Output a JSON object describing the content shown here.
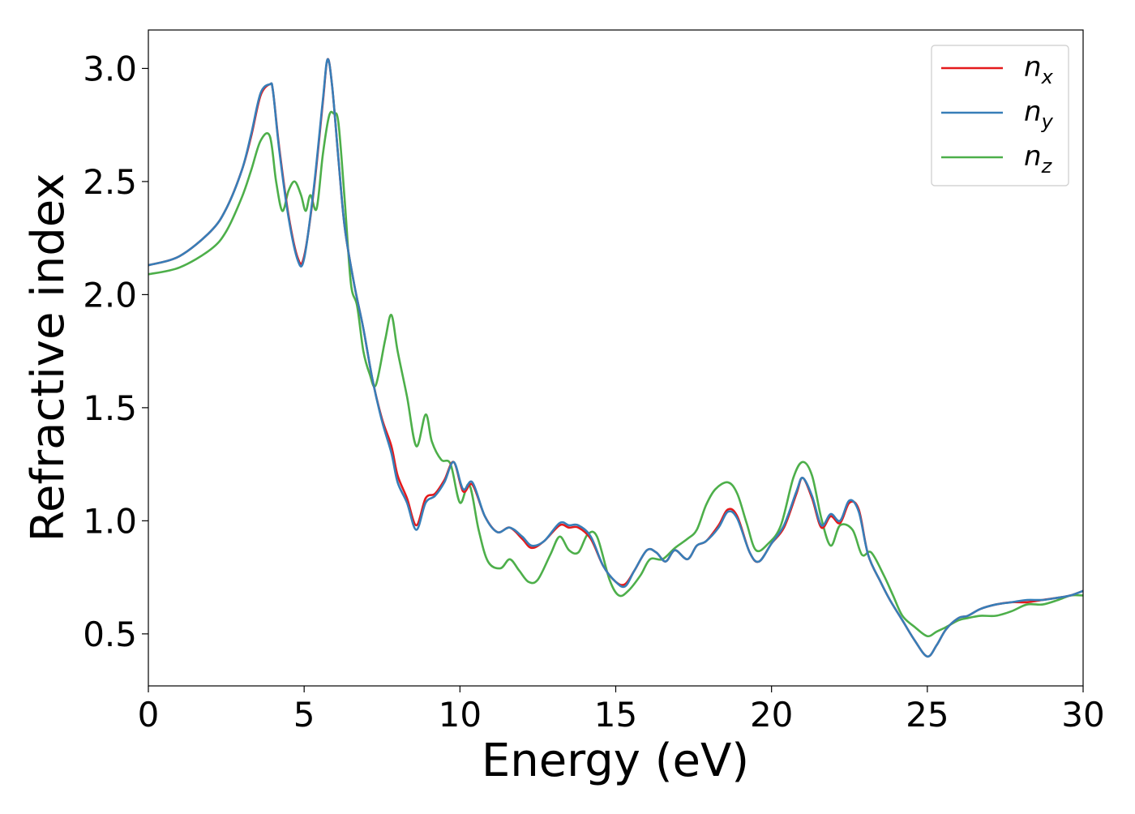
{
  "chart_data": {
    "type": "line",
    "title": "",
    "xlabel": "Energy (eV)",
    "ylabel": "Refractive index",
    "xlim": [
      0,
      30
    ],
    "ylim": [
      0.27,
      3.17
    ],
    "xticks": [
      0,
      5,
      10,
      15,
      20,
      25,
      30
    ],
    "xtick_labels": [
      "0",
      "5",
      "10",
      "15",
      "20",
      "25",
      "30"
    ],
    "yticks": [
      0.5,
      1.0,
      1.5,
      2.0,
      2.5,
      3.0
    ],
    "ytick_labels": [
      "0.5",
      "1.0",
      "1.5",
      "2.0",
      "2.5",
      "3.0"
    ],
    "grid": false,
    "legend_position": "top-right",
    "series": [
      {
        "name": "n_x",
        "label_base": "n",
        "label_sub": "x",
        "color": "#e41a1c",
        "x": [
          0,
          1,
          2,
          2.5,
          3,
          3.3,
          3.6,
          3.9,
          4.0,
          4.2,
          4.5,
          4.8,
          5.0,
          5.3,
          5.6,
          5.75,
          5.9,
          6.1,
          6.3,
          6.6,
          6.9,
          7.2,
          7.5,
          7.8,
          8.0,
          8.3,
          8.6,
          8.9,
          9.2,
          9.5,
          9.8,
          10.1,
          10.4,
          10.8,
          11.2,
          11.6,
          12.0,
          12.3,
          12.7,
          13.2,
          13.5,
          13.8,
          14.2,
          14.6,
          15.0,
          15.3,
          15.6,
          16.0,
          16.3,
          16.6,
          16.9,
          17.3,
          17.6,
          17.9,
          18.3,
          18.6,
          18.9,
          19.3,
          19.6,
          20.0,
          20.4,
          20.8,
          21.0,
          21.3,
          21.6,
          21.9,
          22.2,
          22.5,
          22.8,
          23.1,
          23.5,
          23.8,
          24.2,
          24.6,
          25.0,
          25.3,
          25.6,
          26.0,
          26.3,
          26.7,
          27.2,
          27.7,
          28.2,
          28.7,
          29.2,
          29.6,
          30.0
        ],
        "y": [
          2.13,
          2.17,
          2.28,
          2.38,
          2.55,
          2.7,
          2.88,
          2.93,
          2.9,
          2.65,
          2.35,
          2.16,
          2.17,
          2.45,
          2.85,
          3.04,
          2.92,
          2.6,
          2.3,
          2.05,
          1.85,
          1.62,
          1.45,
          1.33,
          1.2,
          1.1,
          0.98,
          1.1,
          1.12,
          1.18,
          1.26,
          1.13,
          1.16,
          1.02,
          0.95,
          0.97,
          0.92,
          0.88,
          0.91,
          0.98,
          0.97,
          0.97,
          0.92,
          0.8,
          0.73,
          0.72,
          0.78,
          0.87,
          0.86,
          0.82,
          0.87,
          0.83,
          0.89,
          0.91,
          0.98,
          1.05,
          1.02,
          0.86,
          0.82,
          0.9,
          0.97,
          1.12,
          1.19,
          1.1,
          0.97,
          1.02,
          0.99,
          1.08,
          1.05,
          0.85,
          0.73,
          0.65,
          0.56,
          0.47,
          0.4,
          0.45,
          0.52,
          0.57,
          0.58,
          0.61,
          0.63,
          0.64,
          0.64,
          0.65,
          0.66,
          0.67,
          0.69
        ]
      },
      {
        "name": "n_y",
        "label_base": "n",
        "label_sub": "y",
        "color": "#377eb8",
        "x": [
          0,
          1,
          2,
          2.5,
          3,
          3.3,
          3.6,
          3.9,
          4.0,
          4.2,
          4.5,
          4.8,
          5.0,
          5.3,
          5.6,
          5.75,
          5.9,
          6.1,
          6.3,
          6.6,
          6.9,
          7.2,
          7.5,
          7.8,
          8.0,
          8.3,
          8.6,
          8.9,
          9.2,
          9.5,
          9.8,
          10.1,
          10.4,
          10.8,
          11.2,
          11.6,
          12.0,
          12.3,
          12.7,
          13.2,
          13.5,
          13.8,
          14.2,
          14.6,
          15.0,
          15.3,
          15.6,
          16.0,
          16.3,
          16.6,
          16.9,
          17.3,
          17.6,
          17.9,
          18.3,
          18.6,
          18.9,
          19.3,
          19.6,
          20.0,
          20.4,
          20.8,
          21.0,
          21.3,
          21.6,
          21.9,
          22.2,
          22.5,
          22.8,
          23.1,
          23.5,
          23.8,
          24.2,
          24.6,
          25.0,
          25.3,
          25.6,
          26.0,
          26.3,
          26.7,
          27.2,
          27.7,
          28.2,
          28.7,
          29.2,
          29.6,
          30.0
        ],
        "y": [
          2.13,
          2.17,
          2.28,
          2.38,
          2.55,
          2.71,
          2.89,
          2.93,
          2.9,
          2.64,
          2.34,
          2.15,
          2.16,
          2.46,
          2.86,
          3.04,
          2.92,
          2.6,
          2.3,
          2.05,
          1.85,
          1.62,
          1.44,
          1.3,
          1.17,
          1.08,
          0.96,
          1.08,
          1.11,
          1.17,
          1.26,
          1.14,
          1.17,
          1.02,
          0.95,
          0.97,
          0.93,
          0.89,
          0.91,
          0.99,
          0.98,
          0.98,
          0.93,
          0.8,
          0.73,
          0.71,
          0.78,
          0.87,
          0.86,
          0.82,
          0.87,
          0.83,
          0.89,
          0.91,
          0.97,
          1.04,
          1.01,
          0.86,
          0.82,
          0.9,
          0.98,
          1.13,
          1.19,
          1.11,
          0.98,
          1.03,
          1.0,
          1.09,
          1.04,
          0.85,
          0.73,
          0.65,
          0.56,
          0.47,
          0.4,
          0.45,
          0.52,
          0.57,
          0.58,
          0.61,
          0.63,
          0.64,
          0.65,
          0.65,
          0.66,
          0.67,
          0.69
        ]
      },
      {
        "name": "n_z",
        "label_base": "n",
        "label_sub": "z",
        "color": "#4daf4a",
        "x": [
          0,
          1,
          2,
          2.5,
          3,
          3.3,
          3.6,
          3.9,
          4.1,
          4.3,
          4.5,
          4.7,
          4.9,
          5.05,
          5.2,
          5.4,
          5.6,
          5.8,
          5.95,
          6.1,
          6.3,
          6.5,
          6.7,
          6.9,
          7.1,
          7.3,
          7.6,
          7.8,
          8.0,
          8.3,
          8.6,
          8.9,
          9.1,
          9.4,
          9.7,
          10.0,
          10.3,
          10.6,
          10.9,
          11.3,
          11.6,
          11.9,
          12.2,
          12.5,
          12.9,
          13.2,
          13.5,
          13.8,
          14.1,
          14.4,
          14.8,
          15.1,
          15.4,
          15.8,
          16.1,
          16.5,
          16.9,
          17.3,
          17.6,
          17.9,
          18.2,
          18.6,
          18.9,
          19.2,
          19.5,
          19.9,
          20.3,
          20.7,
          21.0,
          21.3,
          21.6,
          21.9,
          22.2,
          22.6,
          22.9,
          23.2,
          23.6,
          23.9,
          24.2,
          24.6,
          25.0,
          25.3,
          25.6,
          26.0,
          26.3,
          26.7,
          27.2,
          27.7,
          28.2,
          28.7,
          29.2,
          29.6,
          30.0
        ],
        "y": [
          2.09,
          2.12,
          2.2,
          2.28,
          2.43,
          2.55,
          2.68,
          2.7,
          2.5,
          2.37,
          2.46,
          2.5,
          2.44,
          2.37,
          2.44,
          2.38,
          2.62,
          2.79,
          2.8,
          2.76,
          2.42,
          2.05,
          1.95,
          1.75,
          1.65,
          1.6,
          1.8,
          1.91,
          1.75,
          1.55,
          1.33,
          1.47,
          1.35,
          1.27,
          1.25,
          1.08,
          1.16,
          0.96,
          0.82,
          0.79,
          0.83,
          0.78,
          0.73,
          0.74,
          0.85,
          0.93,
          0.87,
          0.86,
          0.94,
          0.93,
          0.74,
          0.67,
          0.69,
          0.76,
          0.83,
          0.83,
          0.88,
          0.92,
          0.96,
          1.07,
          1.14,
          1.17,
          1.12,
          0.99,
          0.87,
          0.9,
          0.98,
          1.19,
          1.26,
          1.2,
          1.01,
          0.89,
          0.98,
          0.96,
          0.85,
          0.86,
          0.76,
          0.67,
          0.58,
          0.53,
          0.49,
          0.51,
          0.53,
          0.56,
          0.57,
          0.58,
          0.58,
          0.6,
          0.63,
          0.63,
          0.65,
          0.67,
          0.67
        ]
      }
    ]
  }
}
